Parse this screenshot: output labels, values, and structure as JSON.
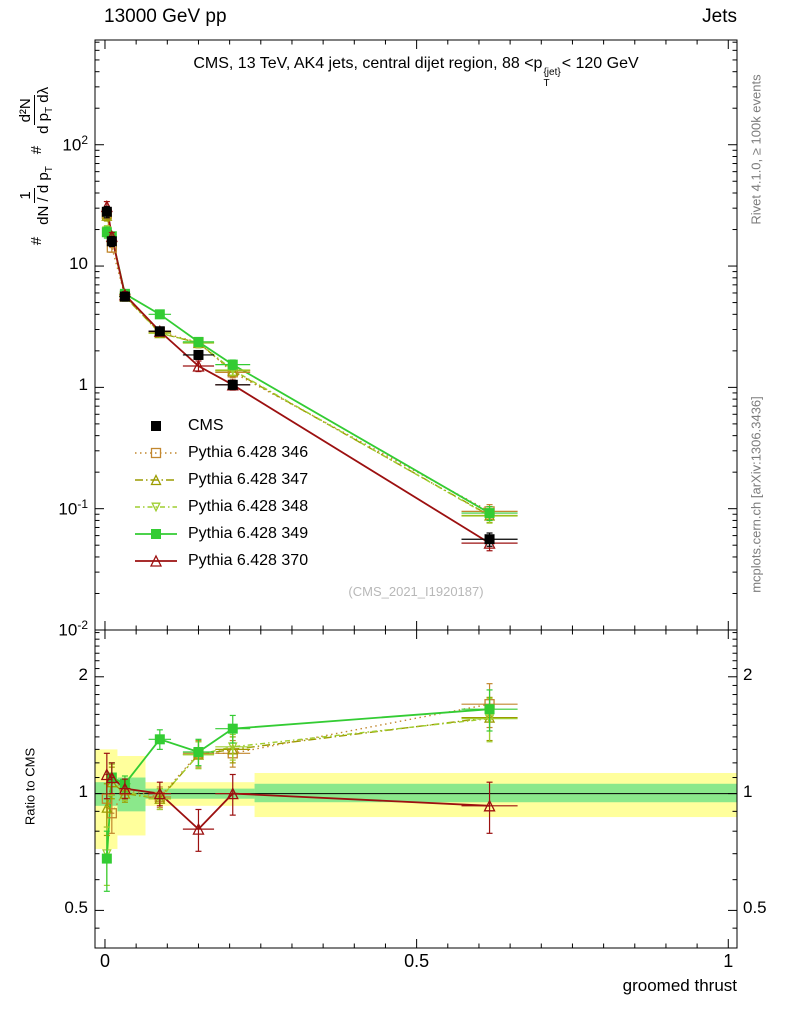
{
  "header": {
    "left": "13000 GeV pp",
    "right": "Jets"
  },
  "titles": {
    "main_prefix": "CMS, 13 TeV, AK4 jets, central dijet region, 88 <p",
    "main_sup": "{jet}",
    "main_sub": "T",
    "main_suffix": "< 120 GeV"
  },
  "watermark": "(CMS_2021_I1920187)",
  "side_labels": {
    "rivet": "Rivet 4.1.0, ≥ 100k events",
    "mcplots": "mcplots.cern.ch [arXiv:1306.3436]"
  },
  "axes": {
    "x": {
      "label": "groomed thrust",
      "min": -0.016,
      "max": 1.014,
      "ticks": [
        {
          "v": 0,
          "label": "0"
        },
        {
          "v": 0.5,
          "label": "0.5"
        },
        {
          "v": 1,
          "label": "1"
        }
      ]
    },
    "main_y": {
      "scale": "log",
      "min": 0.01,
      "max": 730,
      "label_parts": {
        "hash1": "#",
        "f1num": "1",
        "f1den": "dN / d p",
        "f1den_sub": "T",
        "hash2": "#",
        "f2num": "d²N",
        "f2den": "d p",
        "f2den_sub": "T",
        "f2den_tail": " dλ"
      },
      "ticks": [
        {
          "v": 100,
          "label": "10^2"
        },
        {
          "v": 10,
          "label": "10"
        },
        {
          "v": 1,
          "label": "1"
        },
        {
          "v": 0.1,
          "label": "10^-1"
        },
        {
          "v": 0.01,
          "label": "10^-2"
        }
      ]
    },
    "ratio_y": {
      "scale": "log",
      "min": 0.4,
      "max": 2.64,
      "label": "Ratio to CMS",
      "ticks": [
        {
          "v": 2,
          "label": "2"
        },
        {
          "v": 1,
          "label": "1"
        },
        {
          "v": 0.5,
          "label": "0.5"
        }
      ]
    }
  },
  "chart_data": [
    {
      "type": "line",
      "panel": "main",
      "title": "CMS, 13 TeV, AK4 jets, central dijet region, 88 <p_T^{jet}< 120 GeV",
      "xlabel": "groomed thrust",
      "ylabel": "# 1/(dN/dp_T) # d2N/(dp_T dlambda)",
      "yscale": "log",
      "xlim": [
        -0.016,
        1.014
      ],
      "ylim": [
        0.01,
        730
      ],
      "x": [
        0.003,
        0.011,
        0.032,
        0.088,
        0.15,
        0.205,
        0.617
      ],
      "xerr": [
        0.002,
        0.004,
        0.009,
        0.018,
        0.025,
        0.028,
        0.045
      ],
      "series": [
        {
          "name": "CMS",
          "color": "#000000",
          "marker": "square-filled",
          "line": "none",
          "lw": 1.5,
          "ms": 4.5,
          "values": [
            28,
            16,
            5.6,
            2.9,
            1.85,
            1.05,
            0.056
          ],
          "yerr": [
            3,
            1.5,
            0.45,
            0.22,
            0.15,
            0.09,
            0.007
          ]
        },
        {
          "name": "Pythia 6.428 346",
          "color": "#c2872e",
          "marker": "square-open",
          "line": "dotted",
          "lw": 1.4,
          "ms": 4.5,
          "values": [
            27,
            14.2,
            5.7,
            2.85,
            2.35,
            1.33,
            0.095
          ],
          "yerr": [
            2.5,
            1.2,
            0.35,
            0.18,
            0.2,
            0.13,
            0.013
          ]
        },
        {
          "name": "Pythia 6.428 347",
          "color": "#9c9c00",
          "marker": "triangle-open",
          "line": "dashdot",
          "lw": 1.4,
          "ms": 4.5,
          "values": [
            26,
            17.1,
            5.6,
            2.8,
            2.32,
            1.37,
            0.088
          ],
          "yerr": [
            2.5,
            1.2,
            0.35,
            0.18,
            0.2,
            0.13,
            0.011
          ]
        },
        {
          "name": "Pythia 6.428 348",
          "color": "#9fce30",
          "marker": "triangle-down-open",
          "line": "dashdotshort",
          "lw": 1.4,
          "ms": 3.8,
          "values": [
            19.5,
            17.4,
            5.7,
            2.8,
            2.33,
            1.39,
            0.087
          ],
          "yerr": [
            2,
            1.2,
            0.35,
            0.18,
            0.2,
            0.13,
            0.011
          ]
        },
        {
          "name": "Pythia 6.428 349",
          "color": "#33cc33",
          "marker": "square-filled",
          "line": "solid",
          "lw": 1.8,
          "ms": 4.5,
          "values": [
            19,
            17.6,
            5.9,
            4.0,
            2.37,
            1.54,
            0.092
          ],
          "yerr": [
            2,
            1.2,
            0.35,
            0.25,
            0.2,
            0.14,
            0.012
          ]
        },
        {
          "name": "Pythia 6.428 370",
          "color": "#9c1010",
          "marker": "triangle-open",
          "line": "solid",
          "lw": 1.8,
          "ms": 5,
          "values": [
            31,
            17.6,
            5.8,
            2.9,
            1.5,
            1.05,
            0.052
          ],
          "yerr": [
            3,
            1.3,
            0.35,
            0.2,
            0.15,
            0.1,
            0.007
          ]
        }
      ]
    },
    {
      "type": "line",
      "panel": "ratio",
      "ylabel": "Ratio to CMS",
      "yscale": "log",
      "xlim": [
        -0.016,
        1.014
      ],
      "ylim": [
        0.4,
        2.64
      ],
      "reference": 1,
      "x": [
        0.003,
        0.011,
        0.032,
        0.088,
        0.15,
        0.205,
        0.617
      ],
      "xerr": [
        0.002,
        0.004,
        0.009,
        0.018,
        0.025,
        0.028,
        0.045
      ],
      "bands": [
        {
          "name": "cms-uncertainty-outer",
          "color": "#ffff9c",
          "segments": [
            {
              "x0": -0.016,
              "x1": 0.02,
              "lo": 0.72,
              "hi": 1.3
            },
            {
              "x0": 0.02,
              "x1": 0.065,
              "lo": 0.78,
              "hi": 1.25
            },
            {
              "x0": 0.065,
              "x1": 0.24,
              "lo": 0.93,
              "hi": 1.07
            },
            {
              "x0": 0.24,
              "x1": 1.014,
              "lo": 0.87,
              "hi": 1.13
            }
          ]
        },
        {
          "name": "cms-uncertainty-inner",
          "color": "#8be88b",
          "segments": [
            {
              "x0": -0.016,
              "x1": 0.02,
              "lo": 0.93,
              "hi": 1.07
            },
            {
              "x0": 0.02,
              "x1": 0.065,
              "lo": 0.9,
              "hi": 1.1
            },
            {
              "x0": 0.065,
              "x1": 0.24,
              "lo": 0.97,
              "hi": 1.03
            },
            {
              "x0": 0.24,
              "x1": 1.014,
              "lo": 0.95,
              "hi": 1.06
            }
          ]
        }
      ],
      "series": [
        {
          "name": "Pythia 6.428 346",
          "color": "#c2872e",
          "marker": "square-open",
          "line": "dotted",
          "lw": 1.4,
          "ms": 4.5,
          "values": [
            0.97,
            0.89,
            1.02,
            0.98,
            1.27,
            1.27,
            1.7
          ],
          "yerr": [
            0.15,
            0.1,
            0.05,
            0.06,
            0.1,
            0.1,
            0.22
          ]
        },
        {
          "name": "Pythia 6.428 347",
          "color": "#9c9c00",
          "marker": "triangle-open",
          "line": "dashdot",
          "lw": 1.4,
          "ms": 4.5,
          "values": [
            0.92,
            1.07,
            1.0,
            0.97,
            1.26,
            1.3,
            1.57
          ],
          "yerr": [
            0.14,
            0.1,
            0.05,
            0.06,
            0.1,
            0.1,
            0.2
          ]
        },
        {
          "name": "Pythia 6.428 348",
          "color": "#9fce30",
          "marker": "triangle-down-open",
          "line": "dashdotshort",
          "lw": 1.4,
          "ms": 3.8,
          "values": [
            0.7,
            1.09,
            1.01,
            0.97,
            1.26,
            1.32,
            1.56
          ],
          "yerr": [
            0.12,
            0.1,
            0.05,
            0.06,
            0.1,
            0.1,
            0.2
          ]
        },
        {
          "name": "Pythia 6.428 349",
          "color": "#33cc33",
          "marker": "square-filled",
          "line": "solid",
          "lw": 1.8,
          "ms": 4.5,
          "values": [
            0.68,
            1.1,
            1.06,
            1.38,
            1.28,
            1.47,
            1.65
          ],
          "yerr": [
            0.12,
            0.1,
            0.05,
            0.08,
            0.1,
            0.12,
            0.2
          ]
        },
        {
          "name": "Pythia 6.428 370",
          "color": "#9c1010",
          "marker": "triangle-open",
          "line": "solid",
          "lw": 1.8,
          "ms": 5,
          "values": [
            1.12,
            1.1,
            1.03,
            1.0,
            0.81,
            1.0,
            0.93
          ],
          "yerr": [
            0.15,
            0.1,
            0.06,
            0.07,
            0.1,
            0.12,
            0.14
          ]
        }
      ]
    }
  ]
}
